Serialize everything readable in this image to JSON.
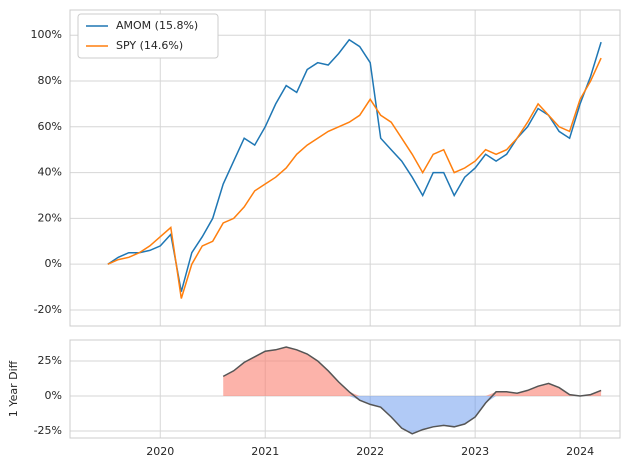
{
  "chart_data": [
    {
      "type": "line",
      "legend": "upper left",
      "grid": true,
      "x": [
        2019.5,
        2019.6,
        2019.7,
        2019.8,
        2019.9,
        2020.0,
        2020.1,
        2020.2,
        2020.3,
        2020.4,
        2020.5,
        2020.6,
        2020.7,
        2020.8,
        2020.9,
        2021.0,
        2021.1,
        2021.2,
        2021.3,
        2021.4,
        2021.5,
        2021.6,
        2021.7,
        2021.8,
        2021.9,
        2022.0,
        2022.1,
        2022.2,
        2022.3,
        2022.4,
        2022.5,
        2022.6,
        2022.7,
        2022.8,
        2022.9,
        2023.0,
        2023.1,
        2023.2,
        2023.3,
        2023.4,
        2023.5,
        2023.6,
        2023.7,
        2023.8,
        2023.9,
        2024.0,
        2024.1,
        2024.2
      ],
      "series": [
        {
          "name": "AMOM (15.8%)",
          "color": "#1f77b4",
          "values": [
            0,
            3,
            5,
            5,
            6,
            8,
            13,
            -12,
            5,
            12,
            20,
            35,
            45,
            55,
            52,
            60,
            70,
            78,
            75,
            85,
            88,
            87,
            92,
            98,
            95,
            88,
            55,
            50,
            45,
            38,
            30,
            40,
            40,
            30,
            38,
            42,
            48,
            45,
            48,
            55,
            60,
            68,
            65,
            58,
            55,
            70,
            82,
            97
          ]
        },
        {
          "name": "SPY (14.6%)",
          "color": "#ff7f0e",
          "values": [
            0,
            2,
            3,
            5,
            8,
            12,
            16,
            -15,
            0,
            8,
            10,
            18,
            20,
            25,
            32,
            35,
            38,
            42,
            48,
            52,
            55,
            58,
            60,
            62,
            65,
            72,
            65,
            62,
            55,
            48,
            40,
            48,
            50,
            40,
            42,
            45,
            50,
            48,
            50,
            55,
            62,
            70,
            65,
            60,
            58,
            72,
            80,
            90
          ]
        }
      ],
      "xlim": [
        2019.14,
        2024.38
      ],
      "xticks": [
        2020,
        2021,
        2022,
        2023,
        2024
      ],
      "ylim": [
        -27,
        111
      ],
      "yticks": [
        {
          "value": -20,
          "label": "-20%"
        },
        {
          "value": 0,
          "label": "0%"
        },
        {
          "value": 20,
          "label": "20%"
        },
        {
          "value": 40,
          "label": "40%"
        },
        {
          "value": 60,
          "label": "60%"
        },
        {
          "value": 80,
          "label": "80%"
        },
        {
          "value": 100,
          "label": "100%"
        }
      ]
    },
    {
      "type": "area",
      "grid": true,
      "y_label": "1 Year Diff",
      "x": [
        2020.6,
        2020.7,
        2020.8,
        2020.9,
        2021.0,
        2021.1,
        2021.2,
        2021.3,
        2021.4,
        2021.5,
        2021.6,
        2021.7,
        2021.8,
        2021.9,
        2022.0,
        2022.1,
        2022.2,
        2022.3,
        2022.4,
        2022.5,
        2022.6,
        2022.7,
        2022.8,
        2022.9,
        2023.0,
        2023.1,
        2023.2,
        2023.3,
        2023.4,
        2023.5,
        2023.6,
        2023.7,
        2023.8,
        2023.9,
        2024.0,
        2024.1,
        2024.2
      ],
      "values": [
        14,
        18,
        24,
        28,
        32,
        33,
        35,
        33,
        30,
        25,
        18,
        10,
        3,
        -3,
        -6,
        -8,
        -15,
        -23,
        -27,
        -24,
        -22,
        -21,
        -22,
        -20,
        -15,
        -5,
        3,
        3,
        2,
        4,
        7,
        9,
        6,
        1,
        0,
        1,
        4
      ],
      "color": "#555555",
      "positive_color": "#fa8072",
      "negative_color": "#6495ed",
      "xlim": [
        2019.14,
        2024.38
      ],
      "xticks": [
        2020,
        2021,
        2022,
        2023,
        2024
      ],
      "ylim": [
        -30,
        40
      ],
      "yticks": [
        {
          "value": -25,
          "label": "-25%"
        },
        {
          "value": 0,
          "label": "0%"
        },
        {
          "value": 25,
          "label": "25%"
        }
      ]
    }
  ]
}
